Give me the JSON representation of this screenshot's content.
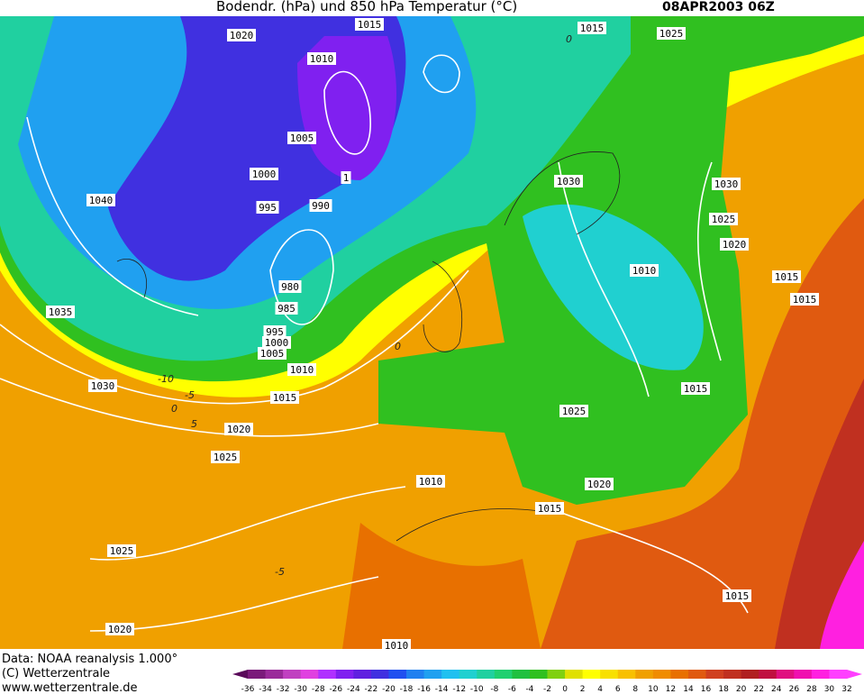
{
  "header": {
    "title": "Bodendr. (hPa) und 850 hPa Temperatur (°C)",
    "date": "08APR2003 06Z"
  },
  "isobar_labels": [
    1015,
    1020,
    1010,
    1005,
    1000,
    1,
    995,
    990,
    1040,
    980,
    985,
    995,
    1000,
    1005,
    1010,
    1015,
    1020,
    1025,
    1030,
    1035,
    1025,
    1020,
    1010,
    1015,
    1020,
    1025,
    1015,
    1010,
    1030,
    1030,
    1025,
    1020,
    1015,
    1015,
    1015,
    1015,
    1025,
    1010
  ],
  "temperature_labels": [
    -10,
    -5,
    0,
    5,
    0,
    -5,
    0
  ],
  "footer": {
    "source": "Data: NOAA reanalysis 1.000°",
    "copyright": "(C) Wetterzentrale",
    "url": "www.wetterzentrale.de"
  },
  "colorbar": {
    "ticks": [
      -36,
      -34,
      -32,
      -30,
      -28,
      -26,
      -24,
      -22,
      -20,
      -18,
      -16,
      -14,
      -12,
      -10,
      -8,
      -6,
      -4,
      -2,
      0,
      2,
      4,
      6,
      8,
      10,
      12,
      14,
      16,
      18,
      20,
      22,
      24,
      26,
      28,
      30,
      32
    ],
    "colors": [
      "#5a0a5a",
      "#7a1a7a",
      "#9a2a9a",
      "#c040c0",
      "#e040e0",
      "#b030ff",
      "#8020f0",
      "#6020e0",
      "#4030e0",
      "#2050f0",
      "#2080f0",
      "#20a0f0",
      "#20c0f0",
      "#20d0d0",
      "#20d0a0",
      "#20d070",
      "#20c040",
      "#30c020",
      "#80d010",
      "#e0e000",
      "#ffff00",
      "#f8e000",
      "#f8c000",
      "#f0a000",
      "#f08c00",
      "#e87000",
      "#e05a10",
      "#d04020",
      "#c03020",
      "#b02020",
      "#c01040",
      "#e01080",
      "#f010b0",
      "#ff20e0",
      "#ff40ff"
    ]
  }
}
